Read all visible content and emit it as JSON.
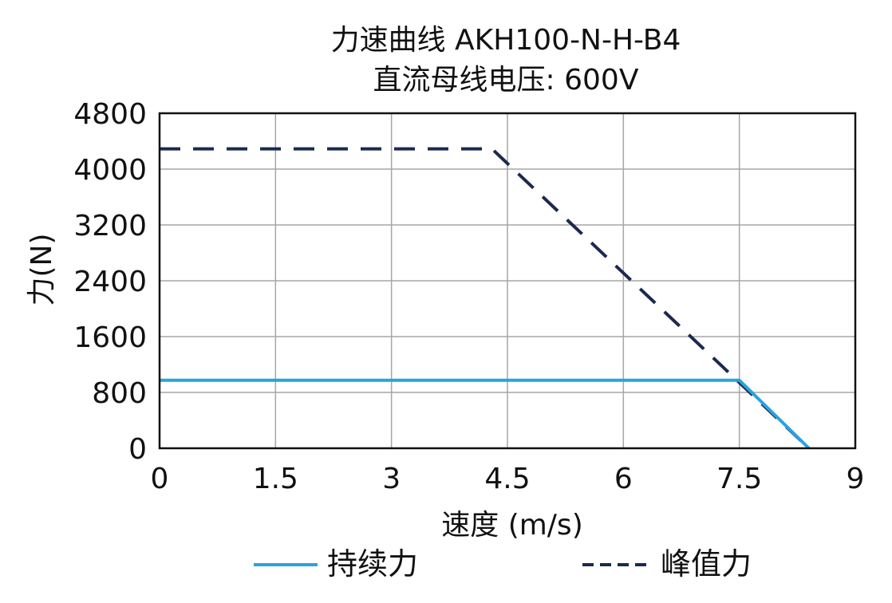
{
  "chart_data": {
    "type": "line",
    "title": "力速曲线 AKH100-N-H-B4",
    "subtitle": "直流母线电压: 600V",
    "xlabel": "速度 (m/s)",
    "ylabel": "力(N)",
    "xlim": [
      0,
      9
    ],
    "ylim": [
      0,
      4800
    ],
    "x_ticks": [
      0,
      1.5,
      3,
      4.5,
      6,
      7.5,
      9
    ],
    "x_tick_labels": [
      "0",
      "1.5",
      "3",
      "4.5",
      "6",
      "7.5",
      "9"
    ],
    "y_ticks": [
      0,
      800,
      1600,
      2400,
      3200,
      4000,
      4800
    ],
    "y_tick_labels": [
      "0",
      "800",
      "1600",
      "2400",
      "3200",
      "4000",
      "4800"
    ],
    "grid": true,
    "legend_position": "bottom",
    "series": [
      {
        "name": "持续力",
        "style": "solid",
        "color": "#2ba3dc",
        "x": [
          0,
          7.5,
          8.4
        ],
        "y": [
          975,
          975,
          0
        ]
      },
      {
        "name": "峰值力",
        "style": "dashed",
        "color": "#1a2a4f",
        "x": [
          0,
          4.3,
          8.4
        ],
        "y": [
          4290,
          4290,
          0
        ]
      }
    ]
  }
}
